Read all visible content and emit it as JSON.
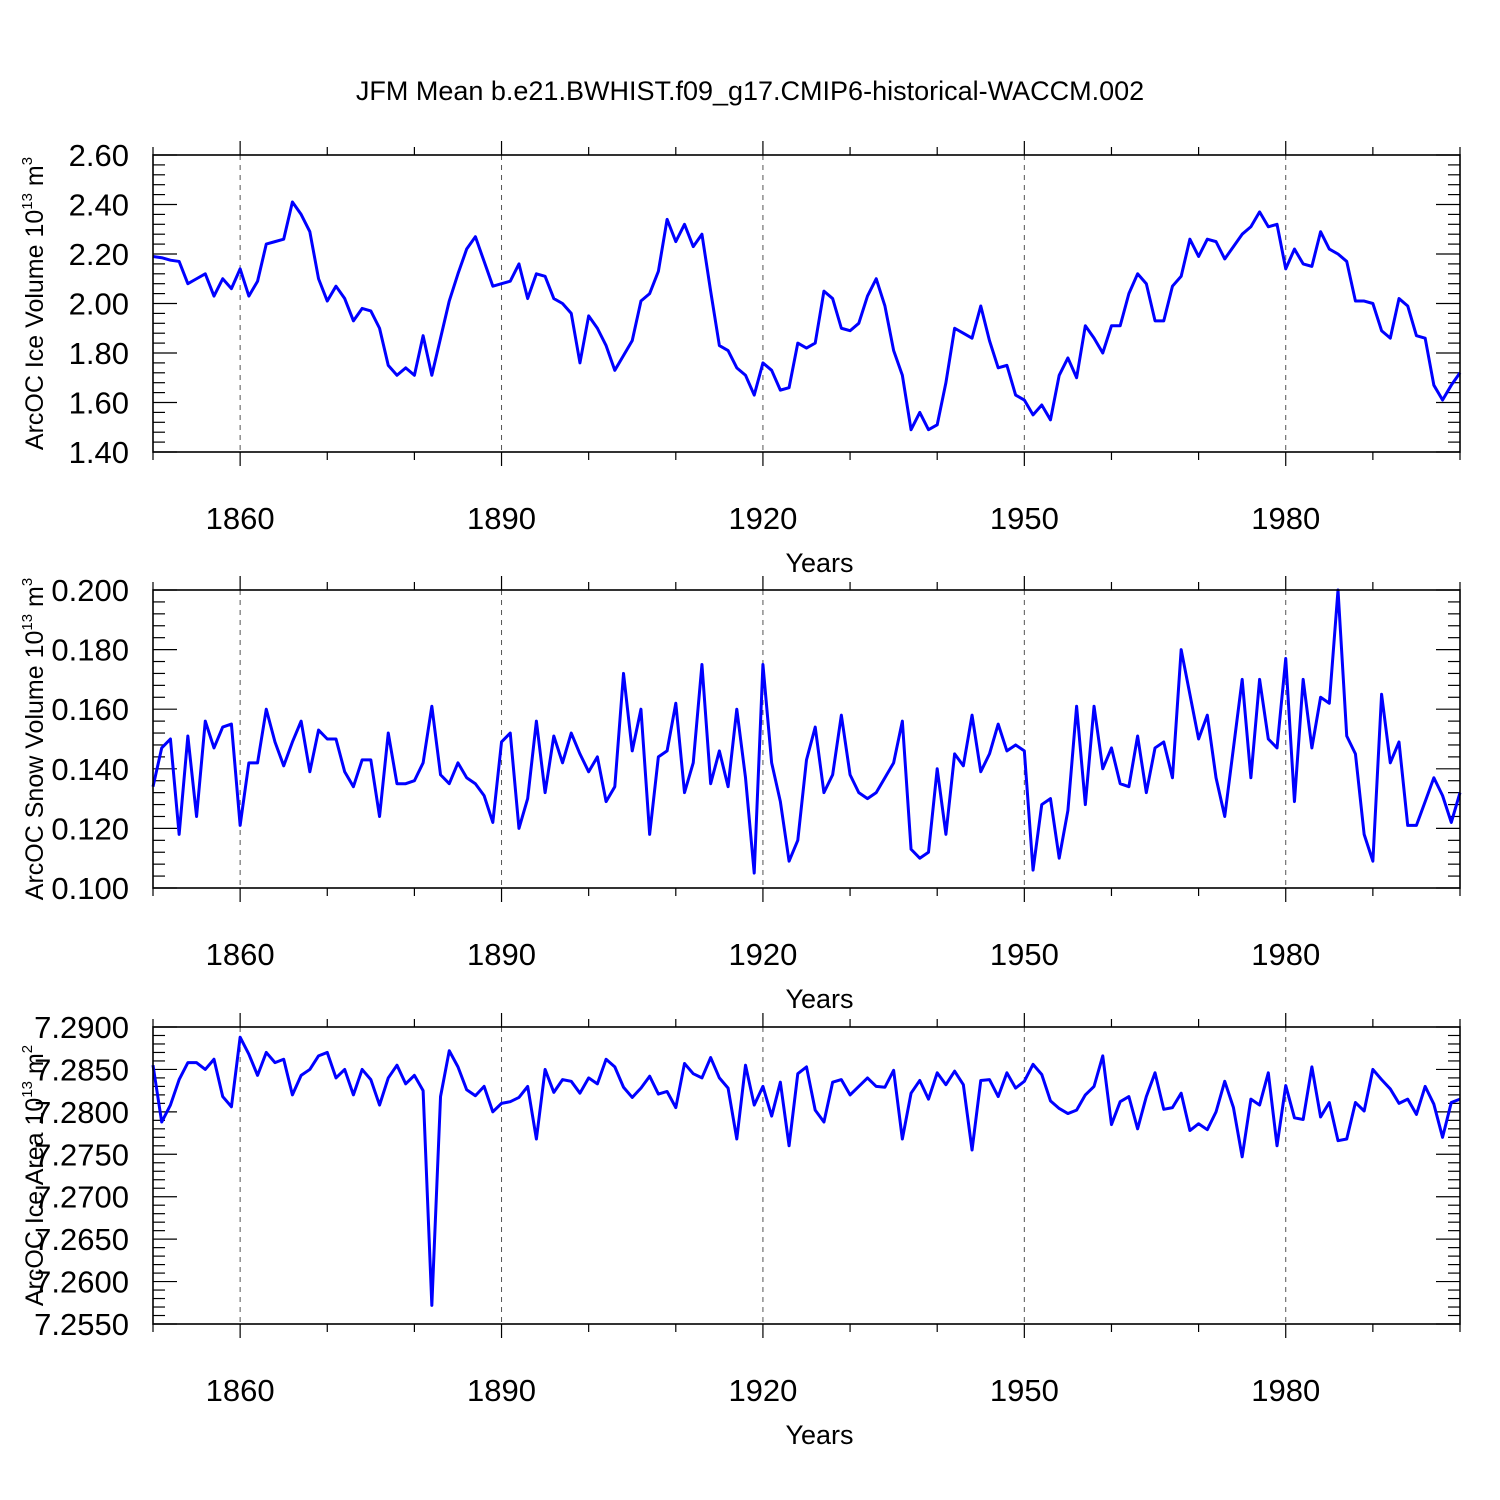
{
  "title": "JFM Mean b.e21.BWHIST.f09_g17.CMIP6-historical-WACCM.002",
  "colors": {
    "line": "#0000ff",
    "axis": "#000000",
    "grid": "#555555"
  },
  "chart_data": [
    {
      "type": "line",
      "name": "ice-volume",
      "ylabel_main": "ArcOC Ice Volume 10",
      "ylabel_exp": "13",
      "ylabel_unit": " m",
      "ylabel_unit_exp": "3",
      "xlabel": "Years",
      "xlim": [
        1850,
        2000
      ],
      "xticks": [
        1860,
        1890,
        1920,
        1950,
        1980
      ],
      "xtick_labels": [
        "1860",
        "1890",
        "1920",
        "1950",
        "1980"
      ],
      "ylim": [
        1.4,
        2.6
      ],
      "yticks": [
        1.4,
        1.6,
        1.8,
        2.0,
        2.2,
        2.4,
        2.6
      ],
      "ytick_labels": [
        "1.40",
        "1.60",
        "1.80",
        "2.00",
        "2.20",
        "2.40",
        "2.60"
      ],
      "x_start": 1850,
      "values": [
        2.19,
        2.185,
        2.175,
        2.17,
        2.08,
        2.1,
        2.12,
        2.03,
        2.1,
        2.06,
        2.14,
        2.03,
        2.09,
        2.24,
        2.25,
        2.26,
        2.41,
        2.36,
        2.29,
        2.1,
        2.01,
        2.07,
        2.02,
        1.93,
        1.98,
        1.97,
        1.9,
        1.75,
        1.71,
        1.74,
        1.71,
        1.87,
        1.71,
        1.86,
        2.01,
        2.12,
        2.22,
        2.27,
        2.17,
        2.07,
        2.08,
        2.09,
        2.16,
        2.02,
        2.12,
        2.11,
        2.02,
        2.0,
        1.96,
        1.76,
        1.95,
        1.9,
        1.83,
        1.73,
        1.79,
        1.85,
        2.01,
        2.04,
        2.13,
        2.34,
        2.25,
        2.32,
        2.23,
        2.28,
        2.05,
        1.83,
        1.81,
        1.74,
        1.71,
        1.63,
        1.76,
        1.73,
        1.65,
        1.66,
        1.84,
        1.82,
        1.84,
        2.05,
        2.02,
        1.9,
        1.89,
        1.92,
        2.03,
        2.1,
        1.99,
        1.81,
        1.71,
        1.49,
        1.56,
        1.49,
        1.51,
        1.68,
        1.9,
        1.88,
        1.86,
        1.99,
        1.85,
        1.74,
        1.75,
        1.63,
        1.61,
        1.55,
        1.59,
        1.53,
        1.71,
        1.78,
        1.7,
        1.91,
        1.86,
        1.8,
        1.91,
        1.91,
        2.04,
        2.12,
        2.08,
        1.93,
        1.93,
        2.07,
        2.11,
        2.26,
        2.19,
        2.26,
        2.25,
        2.18,
        2.23,
        2.28,
        2.31,
        2.37,
        2.31,
        2.32,
        2.14,
        2.22,
        2.16,
        2.15,
        2.29,
        2.22,
        2.2,
        2.17,
        2.01,
        2.01,
        2.0,
        1.89,
        1.86,
        2.02,
        1.99,
        1.87,
        1.86,
        1.67,
        1.61,
        1.67,
        1.72
      ]
    },
    {
      "type": "line",
      "name": "snow-volume",
      "ylabel_main": "ArcOC Snow Volume 10",
      "ylabel_exp": "13",
      "ylabel_unit": " m",
      "ylabel_unit_exp": "3",
      "xlabel": "Years",
      "xlim": [
        1850,
        2000
      ],
      "xticks": [
        1860,
        1890,
        1920,
        1950,
        1980
      ],
      "xtick_labels": [
        "1860",
        "1890",
        "1920",
        "1950",
        "1980"
      ],
      "ylim": [
        0.1,
        0.2
      ],
      "yticks": [
        0.1,
        0.12,
        0.14,
        0.16,
        0.18,
        0.2
      ],
      "ytick_labels": [
        "0.100",
        "0.120",
        "0.140",
        "0.160",
        "0.180",
        "0.200"
      ],
      "x_start": 1850,
      "values": [
        0.134,
        0.147,
        0.15,
        0.118,
        0.151,
        0.124,
        0.156,
        0.147,
        0.154,
        0.155,
        0.121,
        0.142,
        0.142,
        0.16,
        0.149,
        0.141,
        0.149,
        0.156,
        0.139,
        0.153,
        0.15,
        0.15,
        0.139,
        0.134,
        0.143,
        0.143,
        0.124,
        0.152,
        0.135,
        0.135,
        0.136,
        0.142,
        0.161,
        0.138,
        0.135,
        0.142,
        0.137,
        0.135,
        0.131,
        0.122,
        0.149,
        0.152,
        0.12,
        0.13,
        0.156,
        0.132,
        0.151,
        0.142,
        0.152,
        0.145,
        0.139,
        0.144,
        0.129,
        0.134,
        0.172,
        0.146,
        0.16,
        0.118,
        0.144,
        0.146,
        0.162,
        0.132,
        0.142,
        0.175,
        0.135,
        0.146,
        0.134,
        0.16,
        0.137,
        0.105,
        0.175,
        0.142,
        0.129,
        0.109,
        0.116,
        0.143,
        0.154,
        0.132,
        0.138,
        0.158,
        0.138,
        0.132,
        0.13,
        0.132,
        0.137,
        0.142,
        0.156,
        0.113,
        0.11,
        0.112,
        0.14,
        0.118,
        0.145,
        0.141,
        0.158,
        0.139,
        0.145,
        0.155,
        0.146,
        0.148,
        0.146,
        0.106,
        0.128,
        0.13,
        0.11,
        0.126,
        0.161,
        0.128,
        0.161,
        0.14,
        0.147,
        0.135,
        0.134,
        0.151,
        0.132,
        0.147,
        0.149,
        0.137,
        0.18,
        0.165,
        0.15,
        0.158,
        0.137,
        0.124,
        0.147,
        0.17,
        0.137,
        0.17,
        0.15,
        0.147,
        0.177,
        0.129,
        0.17,
        0.147,
        0.164,
        0.162,
        0.2,
        0.151,
        0.145,
        0.118,
        0.109,
        0.165,
        0.142,
        0.149,
        0.121,
        0.121,
        0.129,
        0.137,
        0.131,
        0.122,
        0.132
      ]
    },
    {
      "type": "line",
      "name": "ice-area",
      "ylabel_main": "ArcOC Ice Area 10",
      "ylabel_exp": "13",
      "ylabel_unit": " m",
      "ylabel_unit_exp": "2",
      "xlabel": "Years",
      "xlim": [
        1850,
        2000
      ],
      "xticks": [
        1860,
        1890,
        1920,
        1950,
        1980
      ],
      "xtick_labels": [
        "1860",
        "1890",
        "1920",
        "1950",
        "1980"
      ],
      "ylim": [
        7.255,
        7.29
      ],
      "yticks": [
        7.255,
        7.26,
        7.265,
        7.27,
        7.275,
        7.28,
        7.285,
        7.29
      ],
      "ytick_labels": [
        "7.2550",
        "7.2600",
        "7.2650",
        "7.2700",
        "7.2750",
        "7.2800",
        "7.2850",
        "7.2900"
      ],
      "x_start": 1850,
      "values": [
        7.2855,
        7.2788,
        7.2808,
        7.2838,
        7.2858,
        7.2858,
        7.285,
        7.2862,
        7.2818,
        7.2806,
        7.2888,
        7.2868,
        7.2843,
        7.287,
        7.2858,
        7.2862,
        7.282,
        7.2843,
        7.285,
        7.2866,
        7.287,
        7.284,
        7.285,
        7.282,
        7.285,
        7.2838,
        7.2808,
        7.284,
        7.2855,
        7.2833,
        7.2843,
        7.2825,
        7.2572,
        7.2818,
        7.2872,
        7.2853,
        7.2826,
        7.2819,
        7.283,
        7.28,
        7.281,
        7.2812,
        7.2817,
        7.283,
        7.2768,
        7.285,
        7.2823,
        7.2838,
        7.2836,
        7.2822,
        7.284,
        7.2833,
        7.2862,
        7.2853,
        7.2829,
        7.2817,
        7.2828,
        7.2842,
        7.2821,
        7.2824,
        7.2805,
        7.2857,
        7.2845,
        7.284,
        7.2864,
        7.284,
        7.2828,
        7.2768,
        7.2855,
        7.2808,
        7.283,
        7.2795,
        7.2835,
        7.276,
        7.2845,
        7.2853,
        7.2802,
        7.2788,
        7.2835,
        7.2838,
        7.282,
        7.283,
        7.284,
        7.283,
        7.2829,
        7.2849,
        7.2768,
        7.2822,
        7.2837,
        7.2815,
        7.2846,
        7.2832,
        7.2848,
        7.2832,
        7.2755,
        7.2837,
        7.2838,
        7.2818,
        7.2846,
        7.2828,
        7.2836,
        7.2856,
        7.2844,
        7.2813,
        7.2804,
        7.2798,
        7.2802,
        7.282,
        7.283,
        7.2866,
        7.2785,
        7.2812,
        7.2818,
        7.278,
        7.2818,
        7.2846,
        7.2803,
        7.2805,
        7.2822,
        7.2778,
        7.2786,
        7.2779,
        7.28,
        7.2836,
        7.2805,
        7.2747,
        7.2815,
        7.2808,
        7.2846,
        7.276,
        7.2831,
        7.2793,
        7.2791,
        7.2853,
        7.2794,
        7.2811,
        7.2766,
        7.2768,
        7.2811,
        7.2801,
        7.285,
        7.2838,
        7.2827,
        7.281,
        7.2815,
        7.2797,
        7.283,
        7.2809,
        7.277,
        7.2811,
        7.2815
      ]
    }
  ]
}
